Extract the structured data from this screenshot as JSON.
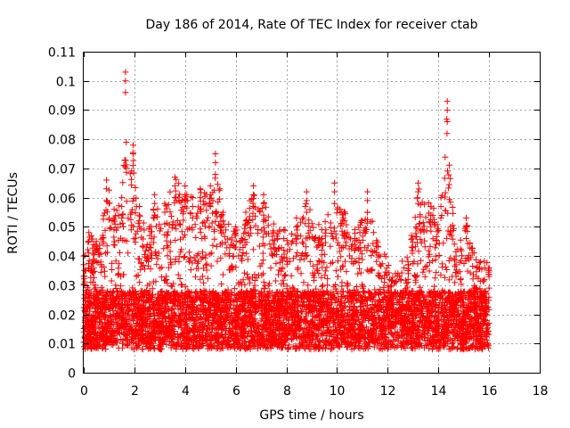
{
  "chart_data": {
    "type": "scatter",
    "title": "Day 186 of 2014, Rate Of TEC Index for receiver ctab",
    "xlabel": "GPS time / hours",
    "ylabel": "ROTI / TECUs",
    "xlim": [
      0,
      18
    ],
    "ylim": [
      0,
      0.11
    ],
    "x_ticks": [
      0,
      2,
      4,
      6,
      8,
      10,
      12,
      14,
      16,
      18
    ],
    "x_tick_labels": [
      "0",
      "2",
      "4",
      "6",
      "8",
      "10",
      "12",
      "14",
      "16",
      "18"
    ],
    "y_ticks": [
      0,
      0.01,
      0.02,
      0.03,
      0.04,
      0.05,
      0.06,
      0.07,
      0.08,
      0.09,
      0.1,
      0.11
    ],
    "y_tick_labels": [
      "0",
      "0.01",
      "0.02",
      "0.03",
      "0.04",
      "0.05",
      "0.06",
      "0.07",
      "0.08",
      "0.09",
      "0.1",
      "0.11"
    ],
    "grid": true,
    "marker": "+",
    "marker_color": "#ff0000",
    "data_range_hours": [
      0,
      16
    ],
    "baseline_roti_approx": [
      0.01,
      0.025
    ],
    "envelope_points": [
      {
        "x": 0.0,
        "y": 0.04
      },
      {
        "x": 0.2,
        "y": 0.048
      },
      {
        "x": 0.5,
        "y": 0.045
      },
      {
        "x": 0.9,
        "y": 0.066
      },
      {
        "x": 1.2,
        "y": 0.056
      },
      {
        "x": 1.5,
        "y": 0.06
      },
      {
        "x": 1.65,
        "y": 0.103
      },
      {
        "x": 1.95,
        "y": 0.078
      },
      {
        "x": 2.2,
        "y": 0.057
      },
      {
        "x": 2.6,
        "y": 0.05
      },
      {
        "x": 2.8,
        "y": 0.061
      },
      {
        "x": 3.2,
        "y": 0.058
      },
      {
        "x": 3.6,
        "y": 0.067
      },
      {
        "x": 4.0,
        "y": 0.064
      },
      {
        "x": 4.3,
        "y": 0.06
      },
      {
        "x": 4.6,
        "y": 0.063
      },
      {
        "x": 5.0,
        "y": 0.064
      },
      {
        "x": 5.2,
        "y": 0.075
      },
      {
        "x": 5.5,
        "y": 0.055
      },
      {
        "x": 6.0,
        "y": 0.05
      },
      {
        "x": 6.4,
        "y": 0.055
      },
      {
        "x": 6.7,
        "y": 0.064
      },
      {
        "x": 7.1,
        "y": 0.061
      },
      {
        "x": 7.5,
        "y": 0.051
      },
      {
        "x": 7.9,
        "y": 0.049
      },
      {
        "x": 8.4,
        "y": 0.053
      },
      {
        "x": 8.8,
        "y": 0.062
      },
      {
        "x": 9.4,
        "y": 0.049
      },
      {
        "x": 9.9,
        "y": 0.065
      },
      {
        "x": 10.3,
        "y": 0.055
      },
      {
        "x": 10.7,
        "y": 0.049
      },
      {
        "x": 11.2,
        "y": 0.062
      },
      {
        "x": 11.7,
        "y": 0.04
      },
      {
        "x": 12.3,
        "y": 0.034
      },
      {
        "x": 12.8,
        "y": 0.038
      },
      {
        "x": 13.2,
        "y": 0.065
      },
      {
        "x": 13.7,
        "y": 0.057
      },
      {
        "x": 14.1,
        "y": 0.06
      },
      {
        "x": 14.35,
        "y": 0.093
      },
      {
        "x": 14.7,
        "y": 0.04
      },
      {
        "x": 15.1,
        "y": 0.053
      },
      {
        "x": 15.5,
        "y": 0.036
      },
      {
        "x": 16.0,
        "y": 0.036
      }
    ]
  }
}
